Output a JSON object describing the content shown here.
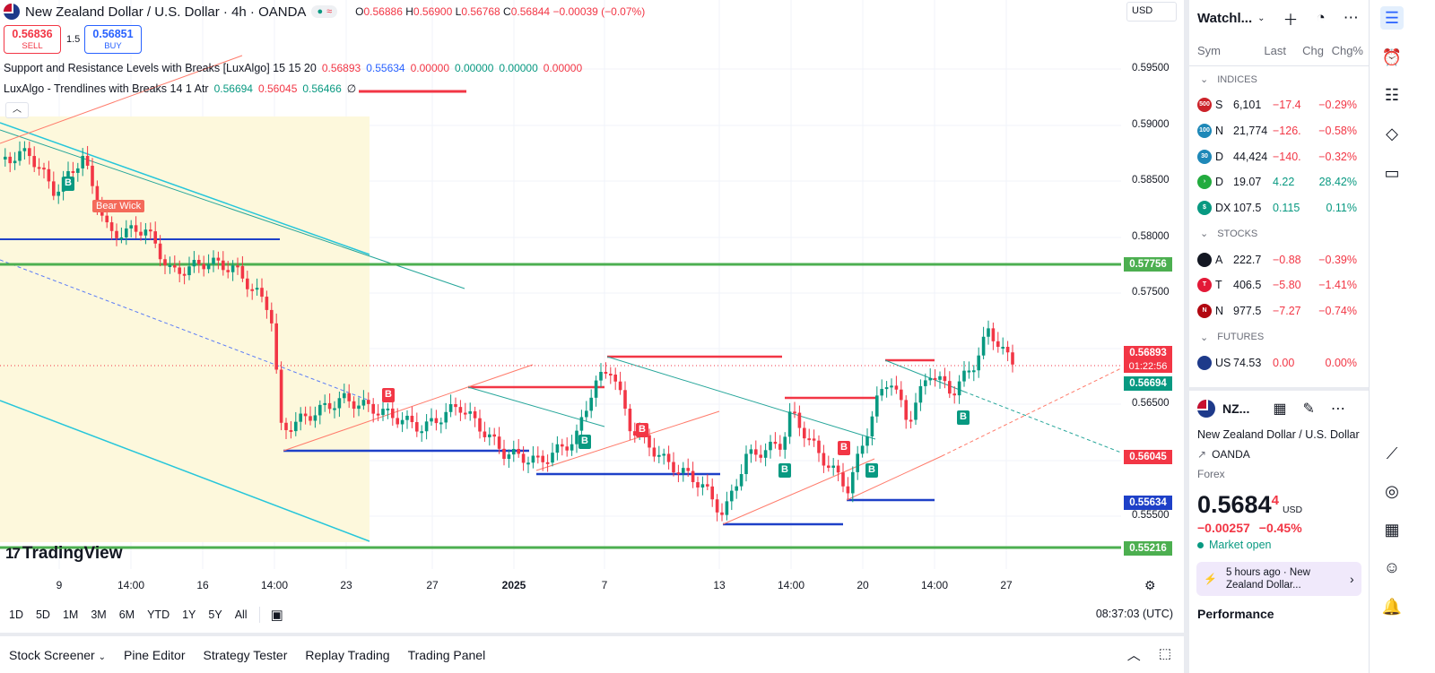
{
  "header": {
    "title": "New Zealand Dollar / U.S. Dollar · 4h · OANDA",
    "ohlc_open_label": "O",
    "ohlc_open": "0.56886",
    "ohlc_high_label": "H",
    "ohlc_high": "0.56900",
    "ohlc_low_label": "L",
    "ohlc_low": "0.56768",
    "ohlc_close_label": "C",
    "ohlc_close": "0.56844",
    "ohlc_change": "−0.00039 (−0.07%)",
    "currency": "USD"
  },
  "trade": {
    "sell_price": "0.56836",
    "sell_label": "SELL",
    "spread": "1.5",
    "buy_price": "0.56851",
    "buy_label": "BUY"
  },
  "indicators": [
    {
      "name": "Support and Resistance Levels with Breaks [LuxAlgo] 15 15 20",
      "v1": "0.56893",
      "v2": "0.55634",
      "v3": "0.00000",
      "v4": "0.00000",
      "v5": "0.00000",
      "v6": "0.00000"
    },
    {
      "name": "LuxAlgo - Trendlines with Breaks 14 1 Atr",
      "v1": "0.56694",
      "v2": "0.56045",
      "v3": "0.56466",
      "v4": "∅"
    }
  ],
  "price_axis": {
    "ticks": [
      "0.59500",
      "0.59000",
      "0.58500",
      "0.58000",
      "0.57500",
      "0.56500",
      "0.55500"
    ],
    "tags": [
      "0.57756",
      "0.56893",
      "0.56694",
      "0.56045",
      "0.55634",
      "0.55216"
    ],
    "countdown": "01:22:56"
  },
  "time_axis": [
    "9",
    "14:00",
    "16",
    "14:00",
    "23",
    "27",
    "2025",
    "7",
    "13",
    "14:00",
    "20",
    "14:00",
    "27"
  ],
  "chart_labels": {
    "bear_wick": "Bear Wick",
    "buy_signal": "B",
    "sell_signal": "B"
  },
  "branding": {
    "logo_text": "TradingView"
  },
  "range_bar": {
    "ranges": [
      "1D",
      "5D",
      "1M",
      "3M",
      "6M",
      "YTD",
      "1Y",
      "5Y",
      "All"
    ],
    "clock": "08:37:03 (UTC)"
  },
  "bottom_panel": {
    "tabs": [
      "Stock Screener",
      "Pine Editor",
      "Strategy Tester",
      "Replay Trading",
      "Trading Panel"
    ]
  },
  "watchlist": {
    "title": "Watchl...",
    "columns": [
      "Sym",
      "Last",
      "Chg",
      "Chg%"
    ],
    "sections": [
      {
        "name": "INDICES",
        "rows": [
          {
            "icon": "500",
            "icon_color": "#cc2229",
            "sym": "S",
            "last": "6,101",
            "chg": "−17.4",
            "pct": "−0.29%",
            "dir": "neg"
          },
          {
            "icon": "100",
            "icon_color": "#1e88b8",
            "sym": "N",
            "last": "21,774",
            "chg": "−126.",
            "pct": "−0.58%",
            "dir": "neg"
          },
          {
            "icon": "30",
            "icon_color": "#1e88b8",
            "sym": "D",
            "last": "44,424",
            "chg": "−140.",
            "pct": "−0.32%",
            "dir": "neg"
          },
          {
            "icon": "›",
            "icon_color": "#22ab3e",
            "sym": "D",
            "last": "19.07",
            "chg": "4.22",
            "pct": "28.42%",
            "dir": "pos"
          },
          {
            "icon": "$",
            "icon_color": "#089981",
            "sym": "DX",
            "last": "107.5",
            "chg": "0.115",
            "pct": "0.11%",
            "dir": "pos"
          }
        ]
      },
      {
        "name": "STOCKS",
        "rows": [
          {
            "icon": "",
            "icon_color": "#131722",
            "sym": "A",
            "last": "222.7",
            "chg": "−0.88",
            "pct": "−0.39%",
            "dir": "neg"
          },
          {
            "icon": "T",
            "icon_color": "#e31937",
            "sym": "T",
            "last": "406.5",
            "chg": "−5.80",
            "pct": "−1.41%",
            "dir": "neg"
          },
          {
            "icon": "N",
            "icon_color": "#b20710",
            "sym": "N",
            "last": "977.5",
            "chg": "−7.27",
            "pct": "−0.74%",
            "dir": "neg"
          }
        ]
      },
      {
        "name": "FUTURES",
        "rows": [
          {
            "icon": "",
            "icon_color": "#1e3a8a",
            "sym": "US",
            "last": "74.53",
            "chg": "0.00",
            "pct": "0.00%",
            "dir": "neg"
          }
        ]
      }
    ]
  },
  "detail": {
    "symbol": "NZ...",
    "name": "New Zealand Dollar / U.S. Dollar",
    "exchange": "OANDA",
    "type": "Forex",
    "price_main": "0.5684",
    "price_sup": "4",
    "price_currency": "USD",
    "change": "−0.00257",
    "change_pct": "−0.45%",
    "status": "Market open",
    "news": "5 hours ago · New Zealand Dollar...",
    "performance_title": "Performance"
  }
}
